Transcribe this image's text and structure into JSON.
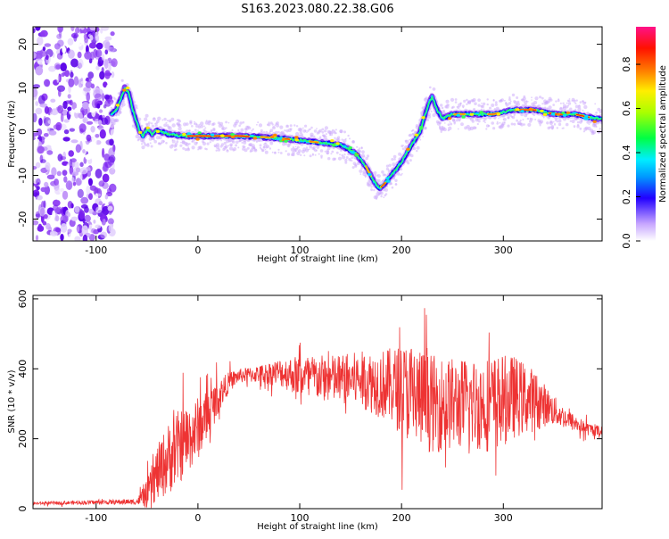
{
  "title": "S163.2023.080.22.38.G06",
  "chart_data": [
    {
      "type": "heatmap",
      "xlabel": "Height of straight line (km)",
      "ylabel": "Frequency (Hz)",
      "xlim": [
        -162,
        397
      ],
      "ylim": [
        -25,
        24
      ],
      "xticks": [
        -100,
        0,
        100,
        200,
        300
      ],
      "yticks": [
        20,
        10,
        0,
        -10,
        -20
      ],
      "ridge": {
        "x": [
          -90,
          -80,
          -75,
          -72,
          -68,
          -64,
          -60,
          -57,
          -54,
          -50,
          -45,
          -40,
          -30,
          -20,
          -10,
          0,
          20,
          40,
          60,
          80,
          100,
          120,
          140,
          155,
          165,
          172,
          178,
          183,
          190,
          200,
          210,
          218,
          222,
          226,
          230,
          235,
          240,
          250,
          270,
          290,
          310,
          330,
          350,
          370,
          390,
          397
        ],
        "y": [
          3,
          5,
          8,
          10,
          9,
          5,
          2,
          0,
          -1,
          0.5,
          -0.5,
          0.3,
          -0.5,
          -0.8,
          -1,
          -1,
          -1,
          -1,
          -1.2,
          -1.5,
          -2,
          -2.5,
          -3,
          -5,
          -8,
          -11,
          -13,
          -12,
          -10,
          -7,
          -3,
          0,
          3,
          6,
          8,
          5,
          3,
          4,
          4,
          4,
          5,
          5,
          4,
          4,
          3,
          3
        ]
      },
      "colorbar": {
        "label": "Normalized spectral amplitude",
        "ticks": [
          "0.0",
          "0.2",
          "0.4",
          "0.6",
          "0.8"
        ],
        "range": [
          0,
          0.97
        ]
      }
    },
    {
      "type": "line",
      "xlabel": "Height of straight line (km)",
      "ylabel": "SNR (10 * v/v)",
      "xlim": [
        -162,
        397
      ],
      "ylim": [
        0,
        610
      ],
      "xticks": [
        -100,
        0,
        100,
        200,
        300
      ],
      "yticks": [
        0,
        200,
        400,
        600
      ],
      "color": "#ee3333",
      "envelope": {
        "x": [
          -162,
          -60,
          -50,
          -40,
          -25,
          -10,
          0,
          10,
          20,
          30,
          40,
          60,
          80,
          100,
          130,
          160,
          190,
          210,
          230,
          260,
          290,
          310,
          330,
          345,
          360,
          380,
          397
        ],
        "mean": [
          15,
          20,
          40,
          100,
          160,
          200,
          230,
          270,
          320,
          360,
          380,
          385,
          390,
          380,
          370,
          370,
          350,
          330,
          300,
          300,
          300,
          320,
          310,
          290,
          260,
          230,
          220
        ],
        "amp": [
          4,
          8,
          40,
          80,
          110,
          100,
          90,
          70,
          50,
          30,
          20,
          25,
          40,
          60,
          70,
          80,
          110,
          150,
          140,
          130,
          140,
          120,
          90,
          50,
          30,
          20,
          15
        ]
      }
    }
  ]
}
